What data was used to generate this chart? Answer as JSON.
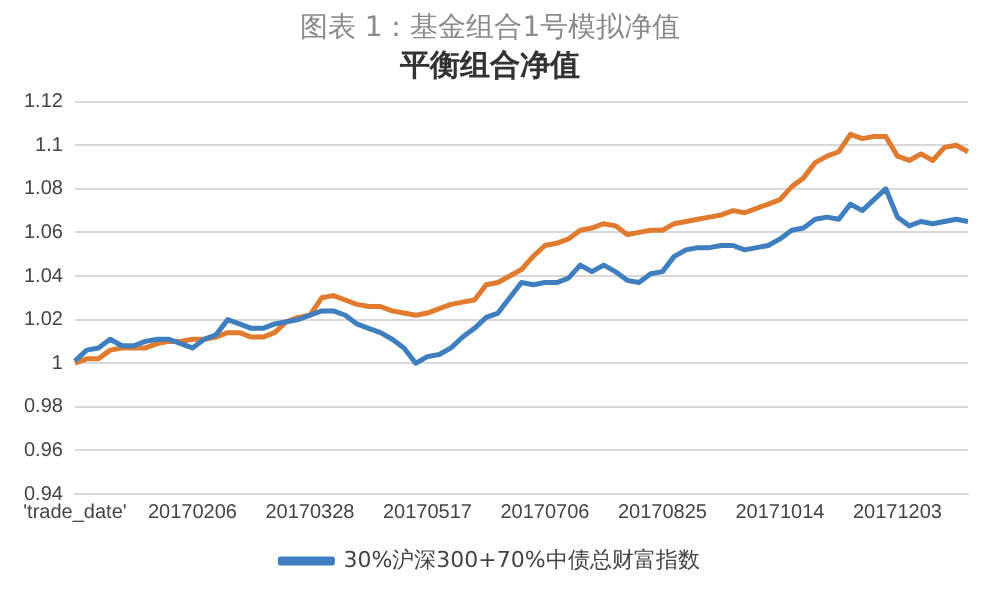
{
  "chart_data": {
    "type": "line",
    "title": "图表 1：基金组合1号模拟净值",
    "subtitle": "平衡组合净值",
    "categories": [
      "'trade_date'",
      null,
      null,
      null,
      null,
      null,
      null,
      null,
      null,
      null,
      "20170206",
      null,
      null,
      null,
      null,
      null,
      null,
      null,
      null,
      null,
      "20170328",
      null,
      null,
      null,
      null,
      null,
      null,
      null,
      null,
      null,
      "20170517",
      null,
      null,
      null,
      null,
      null,
      null,
      null,
      null,
      null,
      "20170706",
      null,
      null,
      null,
      null,
      null,
      null,
      null,
      null,
      null,
      "20170825",
      null,
      null,
      null,
      null,
      null,
      null,
      null,
      null,
      null,
      "20171014",
      null,
      null,
      null,
      null,
      null,
      null,
      null,
      null,
      null,
      "20171203",
      null,
      null,
      null,
      null,
      null,
      null
    ],
    "series": [
      {
        "name": "30%沪深300+70%中债总财富指数",
        "color": "#3f7fbf",
        "values": [
          1.001,
          1.006,
          1.007,
          1.011,
          1.008,
          1.008,
          1.01,
          1.011,
          1.011,
          1.009,
          1.007,
          1.011,
          1.013,
          1.02,
          1.018,
          1.016,
          1.016,
          1.018,
          1.019,
          1.02,
          1.022,
          1.024,
          1.024,
          1.022,
          1.018,
          1.016,
          1.014,
          1.011,
          1.007,
          1.0,
          1.003,
          1.004,
          1.007,
          1.012,
          1.016,
          1.021,
          1.023,
          1.03,
          1.037,
          1.036,
          1.037,
          1.037,
          1.039,
          1.045,
          1.042,
          1.045,
          1.042,
          1.038,
          1.037,
          1.041,
          1.042,
          1.049,
          1.052,
          1.053,
          1.053,
          1.054,
          1.054,
          1.052,
          1.053,
          1.054,
          1.057,
          1.061,
          1.062,
          1.066,
          1.067,
          1.066,
          1.073,
          1.07,
          1.075,
          1.08,
          1.067,
          1.063,
          1.065,
          1.064,
          1.065,
          1.066,
          1.065
        ]
      },
      {
        "color": "#e07b30",
        "values": [
          1.0,
          1.002,
          1.002,
          1.006,
          1.007,
          1.007,
          1.007,
          1.009,
          1.01,
          1.01,
          1.011,
          1.011,
          1.012,
          1.014,
          1.014,
          1.012,
          1.012,
          1.014,
          1.019,
          1.021,
          1.022,
          1.03,
          1.031,
          1.029,
          1.027,
          1.026,
          1.026,
          1.024,
          1.023,
          1.022,
          1.023,
          1.025,
          1.027,
          1.028,
          1.029,
          1.036,
          1.037,
          1.04,
          1.043,
          1.049,
          1.054,
          1.055,
          1.057,
          1.061,
          1.062,
          1.064,
          1.063,
          1.059,
          1.06,
          1.061,
          1.061,
          1.064,
          1.065,
          1.066,
          1.067,
          1.068,
          1.07,
          1.069,
          1.071,
          1.073,
          1.075,
          1.081,
          1.085,
          1.092,
          1.095,
          1.097,
          1.105,
          1.103,
          1.104,
          1.104,
          1.095,
          1.093,
          1.096,
          1.093,
          1.099,
          1.1,
          1.097
        ]
      }
    ],
    "ylim": [
      0.94,
      1.12
    ],
    "yticks": [
      0.94,
      0.96,
      0.98,
      1,
      1.02,
      1.04,
      1.06,
      1.08,
      1.1,
      1.12
    ],
    "grid": "y",
    "legend": "bottom",
    "marker": "none",
    "line_style": "solid"
  }
}
